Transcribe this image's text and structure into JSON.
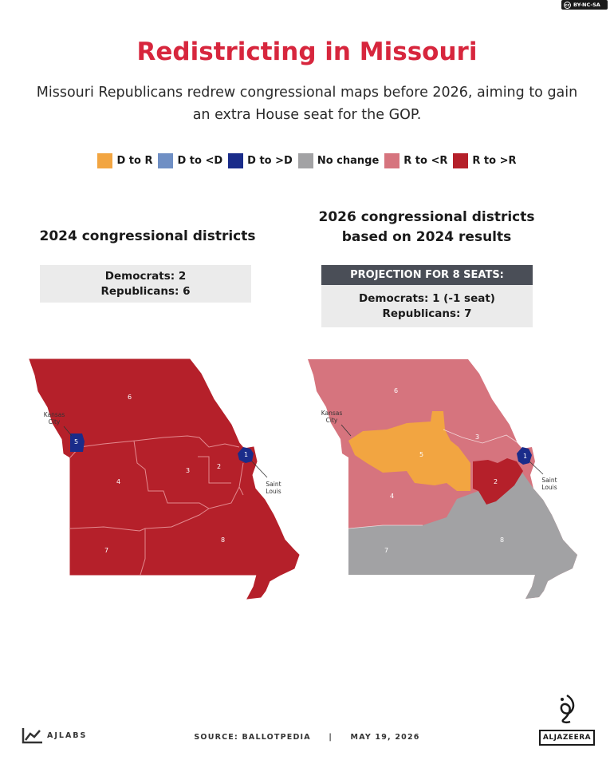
{
  "license": "BY-NC-SA",
  "title": "Redistricting in Missouri",
  "subtitle": "Missouri Republicans redrew congressional maps before 2026, aiming to gain an extra House seat for the GOP.",
  "legend": [
    {
      "label": "D to R",
      "color": "#f2a541"
    },
    {
      "label": "D to <D",
      "color": "#6f8fc4"
    },
    {
      "label": "D to >D",
      "color": "#1a2c8a"
    },
    {
      "label": "No change",
      "color": "#a2a2a4"
    },
    {
      "label": "R to <R",
      "color": "#d6747e"
    },
    {
      "label": "R to >R",
      "color": "#b5202a"
    }
  ],
  "left_map": {
    "heading": "2024 congressional districts",
    "dem_line": "Democrats: 2",
    "rep_line": "Republicans: 6",
    "districts": [
      "6",
      "5",
      "3",
      "2",
      "1",
      "4",
      "7",
      "8"
    ],
    "city_kc": "Kansas City",
    "city_stl": "Saint Louis"
  },
  "right_map": {
    "heading": "2026 congressional districts based on 2024 results",
    "projection_header": "PROJECTION FOR 8 SEATS:",
    "dem_line": "Democrats: 1 (-1 seat)",
    "rep_line": "Republicans: 7",
    "districts": [
      "6",
      "3",
      "5",
      "2",
      "1",
      "4",
      "7",
      "8"
    ],
    "city_kc": "Kansas City",
    "city_stl": "Saint Louis"
  },
  "footer": {
    "brand": "AJLABS",
    "source": "SOURCE:  BALLOTPEDIA",
    "separator": "|",
    "date": "MAY 19, 2026",
    "logo_text": "ALJAZEERA"
  }
}
